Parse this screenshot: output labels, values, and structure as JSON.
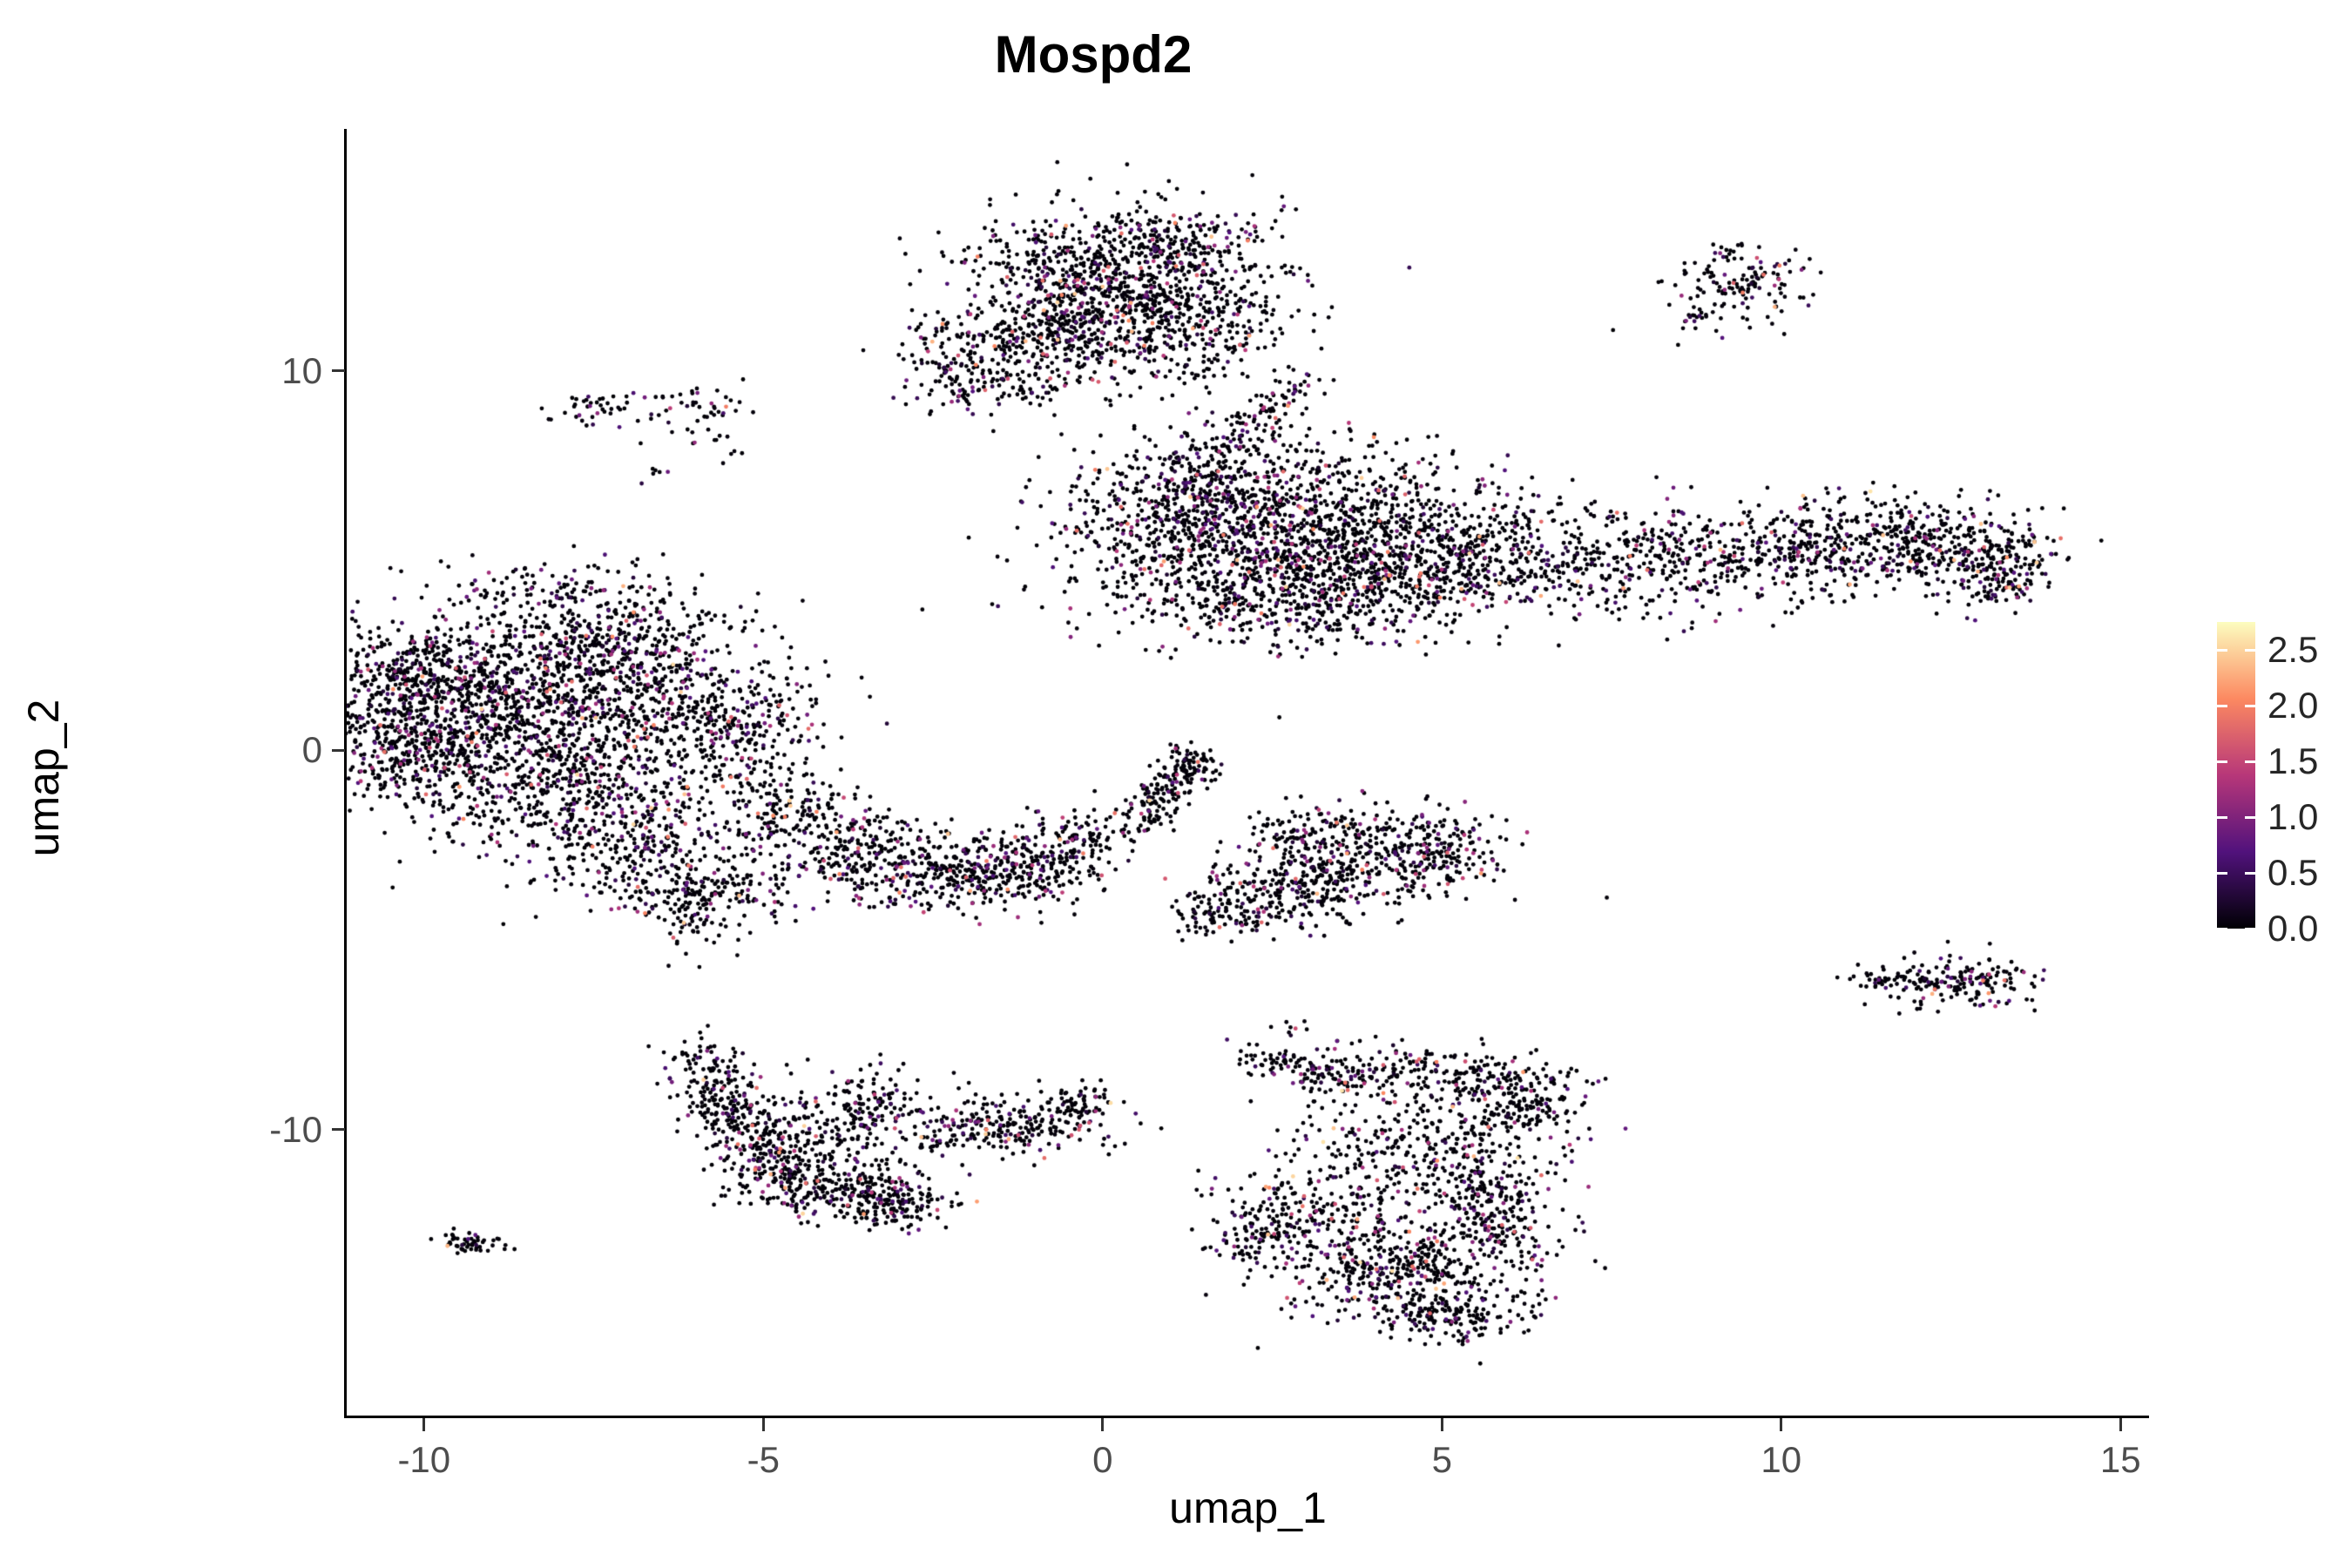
{
  "title": "Mospd2",
  "colors": {
    "background": "#ffffff",
    "axis_line": "#000000",
    "tick_label": "#4d4d4d",
    "title": "#000000",
    "legend_label": "#262626"
  },
  "chart_data": {
    "type": "scatter",
    "title": "Mospd2",
    "subtitle": "",
    "xlabel": "umap_1",
    "ylabel": "umap_2",
    "xlim": [
      -11.14,
      15.42
    ],
    "ylim": [
      -17.6,
      16.33
    ],
    "grid": false,
    "legend_position": "right",
    "point_radius_px": 2.4,
    "x_ticks": [
      {
        "label": "-10",
        "v": -10
      },
      {
        "label": "-5",
        "v": -5
      },
      {
        "label": "0",
        "v": 0
      },
      {
        "label": "5",
        "v": 5
      },
      {
        "label": "10",
        "v": 10
      },
      {
        "label": "15",
        "v": 15
      }
    ],
    "y_ticks": [
      {
        "label": "10",
        "v": 10
      },
      {
        "label": "0",
        "v": 0
      },
      {
        "label": "-10",
        "v": -10
      }
    ],
    "colorbar": {
      "max": 2.75,
      "ticks": [
        {
          "label": "2.5",
          "v": 2.5
        },
        {
          "label": "2.0",
          "v": 2.0
        },
        {
          "label": "1.5",
          "v": 1.5
        },
        {
          "label": "1.0",
          "v": 1.0
        },
        {
          "label": "0.5",
          "v": 0.5
        },
        {
          "label": "0.0",
          "v": 0.0
        }
      ],
      "stops": [
        {
          "t": 0.0,
          "c": "#000004"
        },
        {
          "t": 0.25,
          "c": "#51127c"
        },
        {
          "t": 0.5,
          "c": "#b73779"
        },
        {
          "t": 0.75,
          "c": "#fc8961"
        },
        {
          "t": 1.0,
          "c": "#fcfdbf"
        }
      ]
    },
    "expression_distribution": [
      {
        "p": 0.82,
        "min": 0.0,
        "max": 0.05
      },
      {
        "p": 0.09,
        "min": 0.2,
        "max": 0.7
      },
      {
        "p": 0.055,
        "min": 0.7,
        "max": 1.3
      },
      {
        "p": 0.025,
        "min": 1.3,
        "max": 2.0
      },
      {
        "p": 0.01,
        "min": 2.0,
        "max": 2.6
      }
    ],
    "clusters": [
      {
        "cx": 0.1,
        "cy": 12.4,
        "sx": 1.15,
        "sy": 0.95,
        "n": 900
      },
      {
        "cx": -0.9,
        "cy": 10.7,
        "sx": 0.85,
        "sy": 0.7,
        "n": 320
      },
      {
        "cx": 1.3,
        "cy": 11.3,
        "sx": 0.75,
        "sy": 0.85,
        "n": 260
      },
      {
        "cx": -2.2,
        "cy": 9.9,
        "sx": 0.35,
        "sy": 0.45,
        "n": 70
      },
      {
        "cx": -1.6,
        "cy": 9.6,
        "sx": 0.5,
        "sy": 0.3,
        "n": 60
      },
      {
        "cx": 1.0,
        "cy": 13.6,
        "sx": 0.8,
        "sy": 0.35,
        "n": 90
      },
      {
        "cx": 2.55,
        "cy": 9.1,
        "sx": 0.18,
        "sy": 0.5,
        "n": 55,
        "rot": -35
      },
      {
        "cx": 9.35,
        "cy": 12.3,
        "sx": 0.5,
        "sy": 0.55,
        "n": 150
      },
      {
        "cx": 8.65,
        "cy": 11.4,
        "sx": 0.15,
        "sy": 0.12,
        "n": 10
      },
      {
        "cx": 2.9,
        "cy": 5.7,
        "sx": 1.55,
        "sy": 1.15,
        "n": 1500
      },
      {
        "cx": 1.2,
        "cy": 6.6,
        "sx": 0.8,
        "sy": 0.85,
        "n": 300
      },
      {
        "cx": 2.4,
        "cy": 3.9,
        "sx": 1.2,
        "sy": 0.65,
        "n": 330
      },
      {
        "cx": 4.6,
        "cy": 4.6,
        "sx": 0.9,
        "sy": 0.7,
        "n": 220
      },
      {
        "cx": 5.8,
        "cy": 5.1,
        "sx": 0.9,
        "sy": 0.75,
        "n": 200
      },
      {
        "cx": 7.6,
        "cy": 4.9,
        "sx": 1.1,
        "sy": 0.75,
        "n": 260
      },
      {
        "cx": 9.6,
        "cy": 5.1,
        "sx": 1.0,
        "sy": 0.65,
        "n": 280
      },
      {
        "cx": 11.3,
        "cy": 5.5,
        "sx": 0.9,
        "sy": 0.6,
        "n": 300
      },
      {
        "cx": 12.7,
        "cy": 5.2,
        "sx": 0.7,
        "sy": 0.55,
        "n": 260
      },
      {
        "cx": 13.3,
        "cy": 4.4,
        "sx": 0.3,
        "sy": 0.4,
        "n": 70
      },
      {
        "cx": 1.8,
        "cy": 8.2,
        "sx": 0.35,
        "sy": 0.6,
        "n": 70,
        "rot": -30
      },
      {
        "cx": -8.8,
        "cy": 0.9,
        "sx": 1.4,
        "sy": 1.25,
        "n": 1300
      },
      {
        "cx": -7.4,
        "cy": 2.9,
        "sx": 1.0,
        "sy": 0.8,
        "n": 380
      },
      {
        "cx": -9.9,
        "cy": 2.2,
        "sx": 0.7,
        "sy": 0.6,
        "n": 220
      },
      {
        "cx": -10.3,
        "cy": 0.2,
        "sx": 0.55,
        "sy": 1.0,
        "n": 260
      },
      {
        "cx": -6.3,
        "cy": 1.3,
        "sx": 0.9,
        "sy": 1.0,
        "n": 330
      },
      {
        "cx": -5.2,
        "cy": 0.2,
        "sx": 0.5,
        "sy": 0.85,
        "n": 170
      },
      {
        "cx": -7.6,
        "cy": -1.2,
        "sx": 1.1,
        "sy": 0.7,
        "n": 330
      },
      {
        "cx": -6.8,
        "cy": -2.6,
        "sx": 0.9,
        "sy": 0.7,
        "n": 260
      },
      {
        "cx": -5.9,
        "cy": -3.9,
        "sx": 0.7,
        "sy": 0.55,
        "n": 200
      },
      {
        "cx": -4.6,
        "cy": -1.6,
        "sx": 0.5,
        "sy": 0.5,
        "n": 110
      },
      {
        "cx": -8.2,
        "cy": 4.2,
        "sx": 0.9,
        "sy": 0.35,
        "n": 80
      },
      {
        "cx": -7.3,
        "cy": 9.1,
        "sx": 0.4,
        "sy": 0.3,
        "n": 40
      },
      {
        "cx": -6.0,
        "cy": 8.9,
        "sx": 0.45,
        "sy": 0.5,
        "n": 55
      },
      {
        "cx": -6.6,
        "cy": 7.3,
        "sx": 0.15,
        "sy": 0.12,
        "n": 6
      },
      {
        "cx": -3.6,
        "cy": -2.7,
        "sx": 0.8,
        "sy": 0.6,
        "n": 260
      },
      {
        "cx": -2.2,
        "cy": -3.3,
        "sx": 0.85,
        "sy": 0.5,
        "n": 280
      },
      {
        "cx": -1.0,
        "cy": -2.9,
        "sx": 0.6,
        "sy": 0.5,
        "n": 190
      },
      {
        "cx": -0.3,
        "cy": -2.3,
        "sx": 0.3,
        "sy": 0.4,
        "n": 70
      },
      {
        "cx": 0.85,
        "cy": -1.2,
        "sx": 0.2,
        "sy": 0.6,
        "n": 150,
        "rot": -28
      },
      {
        "cx": 1.3,
        "cy": -0.4,
        "sx": 0.25,
        "sy": 0.3,
        "n": 60
      },
      {
        "cx": 3.9,
        "cy": -2.9,
        "sx": 0.95,
        "sy": 0.6,
        "n": 380
      },
      {
        "cx": 2.7,
        "cy": -3.7,
        "sx": 0.6,
        "sy": 0.5,
        "n": 190
      },
      {
        "cx": 1.8,
        "cy": -4.4,
        "sx": 0.5,
        "sy": 0.3,
        "n": 90
      },
      {
        "cx": 3.1,
        "cy": -2.0,
        "sx": 0.5,
        "sy": 0.3,
        "n": 70
      },
      {
        "cx": 4.9,
        "cy": -2.4,
        "sx": 0.4,
        "sy": 0.4,
        "n": 90
      },
      {
        "cx": 12.6,
        "cy": -6.1,
        "sx": 0.6,
        "sy": 0.35,
        "n": 170
      },
      {
        "cx": 11.5,
        "cy": -6.0,
        "sx": 0.35,
        "sy": 0.12,
        "n": 35
      },
      {
        "cx": -5.8,
        "cy": -8.5,
        "sx": 0.28,
        "sy": 0.5,
        "n": 90,
        "rot": 15
      },
      {
        "cx": -5.4,
        "cy": -9.7,
        "sx": 0.38,
        "sy": 0.6,
        "n": 140,
        "rot": 20
      },
      {
        "cx": -4.8,
        "cy": -10.8,
        "sx": 0.5,
        "sy": 0.5,
        "n": 170
      },
      {
        "cx": -3.9,
        "cy": -11.5,
        "sx": 0.65,
        "sy": 0.45,
        "n": 210
      },
      {
        "cx": -3.1,
        "cy": -11.9,
        "sx": 0.5,
        "sy": 0.35,
        "n": 150
      },
      {
        "cx": -4.4,
        "cy": -9.8,
        "sx": 0.75,
        "sy": 0.65,
        "n": 130
      },
      {
        "cx": -3.4,
        "cy": -9.4,
        "sx": 0.3,
        "sy": 0.55,
        "n": 120
      },
      {
        "cx": -1.5,
        "cy": -9.9,
        "sx": 0.75,
        "sy": 0.4,
        "n": 200,
        "rot": -12
      },
      {
        "cx": -0.4,
        "cy": -9.4,
        "sx": 0.4,
        "sy": 0.3,
        "n": 90
      },
      {
        "cx": -2.4,
        "cy": -10.3,
        "sx": 0.2,
        "sy": 0.15,
        "n": 25
      },
      {
        "cx": 5.1,
        "cy": -8.6,
        "sx": 0.95,
        "sy": 0.4,
        "n": 230,
        "rot": -8
      },
      {
        "cx": 6.2,
        "cy": -9.4,
        "sx": 0.45,
        "sy": 0.55,
        "n": 130
      },
      {
        "cx": 4.6,
        "cy": -10.3,
        "sx": 0.95,
        "sy": 0.7,
        "n": 260
      },
      {
        "cx": 5.6,
        "cy": -11.4,
        "sx": 0.5,
        "sy": 0.6,
        "n": 150
      },
      {
        "cx": 3.4,
        "cy": -8.5,
        "sx": 0.45,
        "sy": 0.3,
        "n": 80
      },
      {
        "cx": 2.5,
        "cy": -8.2,
        "sx": 0.3,
        "sy": 0.2,
        "n": 40
      },
      {
        "cx": 3.1,
        "cy": -12.1,
        "sx": 0.7,
        "sy": 0.5,
        "n": 180
      },
      {
        "cx": 2.3,
        "cy": -12.9,
        "sx": 0.4,
        "sy": 0.3,
        "n": 80
      },
      {
        "cx": 4.4,
        "cy": -13.7,
        "sx": 0.95,
        "sy": 0.8,
        "n": 480
      },
      {
        "cx": 5.1,
        "cy": -14.9,
        "sx": 0.6,
        "sy": 0.35,
        "n": 130
      },
      {
        "cx": 5.9,
        "cy": -12.7,
        "sx": 0.45,
        "sy": 0.55,
        "n": 120
      },
      {
        "cx": -9.3,
        "cy": -13.0,
        "sx": 0.28,
        "sy": 0.14,
        "n": 50,
        "rot": -10
      },
      {
        "cx": 2.9,
        "cy": -7.2,
        "sx": 0.25,
        "sy": 0.15,
        "n": 8
      }
    ]
  }
}
